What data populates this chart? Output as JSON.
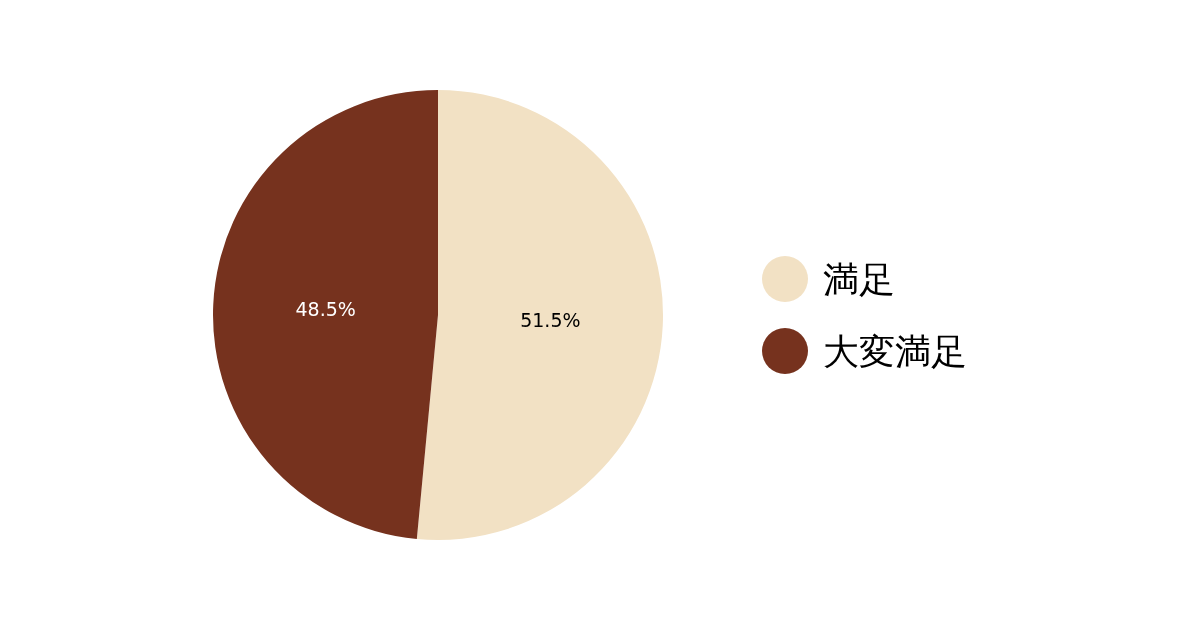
{
  "chart_data": {
    "type": "pie",
    "categories": [
      "満足",
      "大変満足"
    ],
    "values": [
      51.5,
      48.5
    ],
    "colors": [
      "#f2e1c4",
      "#76321e"
    ],
    "value_labels": [
      "51.5%",
      "48.5%"
    ],
    "legend": "right"
  }
}
